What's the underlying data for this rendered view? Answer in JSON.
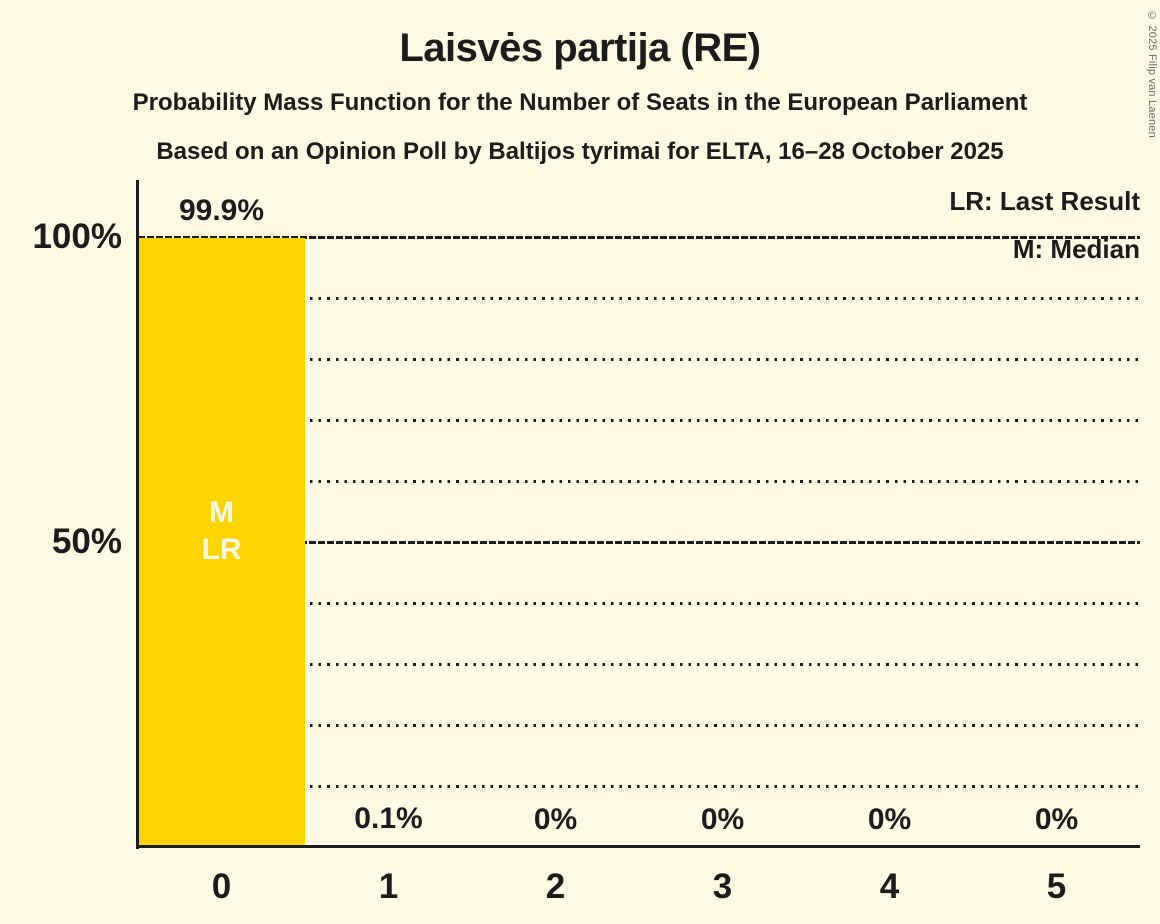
{
  "title": "Laisvės partija (RE)",
  "subtitle": "Probability Mass Function for the Number of Seats in the European Parliament",
  "poll_line": "Based on an Opinion Poll by Baltijos tyrimai for ELTA, 16–28 October 2025",
  "copyright": "© 2025 Filip van Laenen",
  "legend": {
    "lr": "LR: Last Result",
    "m": "M: Median"
  },
  "colors": {
    "background": "#FDF9E3",
    "bar": "#FDD400",
    "text": "#1C1C1C",
    "marker_text": "#FCF9E8",
    "copyright_text": "#6B6B6B"
  },
  "chart_data": {
    "type": "bar",
    "title": "Laisvės partija (RE)",
    "categories": [
      "0",
      "1",
      "2",
      "3",
      "4",
      "5"
    ],
    "values": [
      99.9,
      0.1,
      0,
      0,
      0,
      0
    ],
    "value_labels": [
      "99.9%",
      "0.1%",
      "0%",
      "0%",
      "0%",
      "0%"
    ],
    "ylim": [
      0,
      100
    ],
    "yticks": [
      {
        "value": 100,
        "label": "100%"
      },
      {
        "value": 50,
        "label": "50%"
      }
    ],
    "grid": {
      "horizontal_step_pct": 10,
      "style": "dotted",
      "solid_lines_pct": [
        50,
        100
      ]
    },
    "legend_position": "top-right",
    "markers": {
      "category": "0",
      "labels": [
        "M",
        "LR"
      ]
    }
  }
}
